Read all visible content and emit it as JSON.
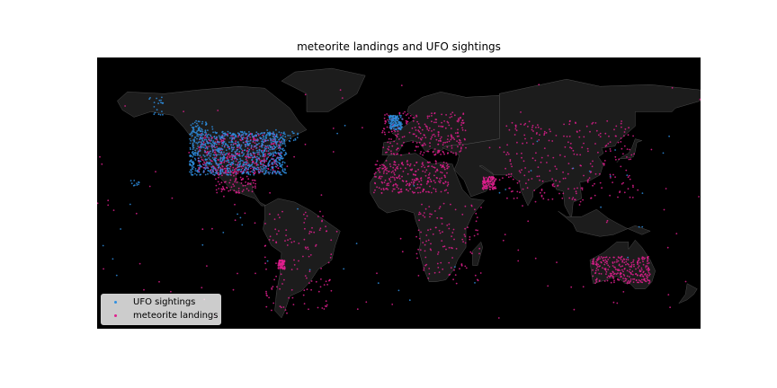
{
  "title": "meteorite landings and UFO sightings",
  "colors": {
    "ocean": "#000000",
    "land": "#1c1c1c",
    "borders": "#5a5a5a",
    "ufo": "#2e8ee0",
    "meteorite": "#e01e8e"
  },
  "legend": {
    "placement": "lower-left",
    "items": [
      {
        "label": "UFO sightings",
        "color": "#2e8ee0"
      },
      {
        "label": "meteorite landings",
        "color": "#e01e8e"
      }
    ]
  },
  "chart_data": {
    "type": "scatter",
    "projection": "plate-carree",
    "xlim": [
      -180,
      180
    ],
    "ylim": [
      -60,
      90
    ],
    "series": [
      {
        "name": "UFO sightings",
        "clusters": [
          {
            "lon": [
              -125,
              -67
            ],
            "lat": [
              25,
              49
            ],
            "n": 900
          },
          {
            "lon": [
              -150,
              -140
            ],
            "lat": [
              58,
              68
            ],
            "n": 20
          },
          {
            "lon": [
              -160,
              -154
            ],
            "lat": [
              19,
              22
            ],
            "n": 10
          },
          {
            "lon": [
              -6,
              2
            ],
            "lat": [
              50,
              58
            ],
            "n": 120
          },
          {
            "lon": [
              -80,
              -60
            ],
            "lat": [
              43,
              50
            ],
            "n": 40
          },
          {
            "lon": [
              -124,
              -110
            ],
            "lat": [
              49,
              55
            ],
            "n": 40
          },
          {
            "lon": [
              -180,
              180
            ],
            "lat": [
              -45,
              65
            ],
            "n": 40
          }
        ]
      },
      {
        "name": "meteorite landings",
        "clusters": [
          {
            "lon": [
              -120,
              -70
            ],
            "lat": [
              26,
              48
            ],
            "n": 450
          },
          {
            "lon": [
              -10,
              40
            ],
            "lat": [
              36,
              60
            ],
            "n": 260
          },
          {
            "lon": [
              -15,
              30
            ],
            "lat": [
              15,
              33
            ],
            "n": 260
          },
          {
            "lon": [
              50,
              58
            ],
            "lat": [
              17,
              24
            ],
            "n": 120
          },
          {
            "lon": [
              115,
              150
            ],
            "lat": [
              -35,
              -20
            ],
            "n": 260
          },
          {
            "lon": [
              -72,
              -68
            ],
            "lat": [
              -27,
              -22
            ],
            "n": 80
          },
          {
            "lon": [
              -110,
              -85
            ],
            "lat": [
              15,
              30
            ],
            "n": 120
          },
          {
            "lon": [
              60,
              140
            ],
            "lat": [
              10,
              55
            ],
            "n": 260
          },
          {
            "lon": [
              10,
              50
            ],
            "lat": [
              -35,
              10
            ],
            "n": 120
          },
          {
            "lon": [
              -80,
              -40
            ],
            "lat": [
              -50,
              5
            ],
            "n": 120
          },
          {
            "lon": [
              -180,
              180
            ],
            "lat": [
              -55,
              75
            ],
            "n": 120
          }
        ]
      }
    ]
  }
}
